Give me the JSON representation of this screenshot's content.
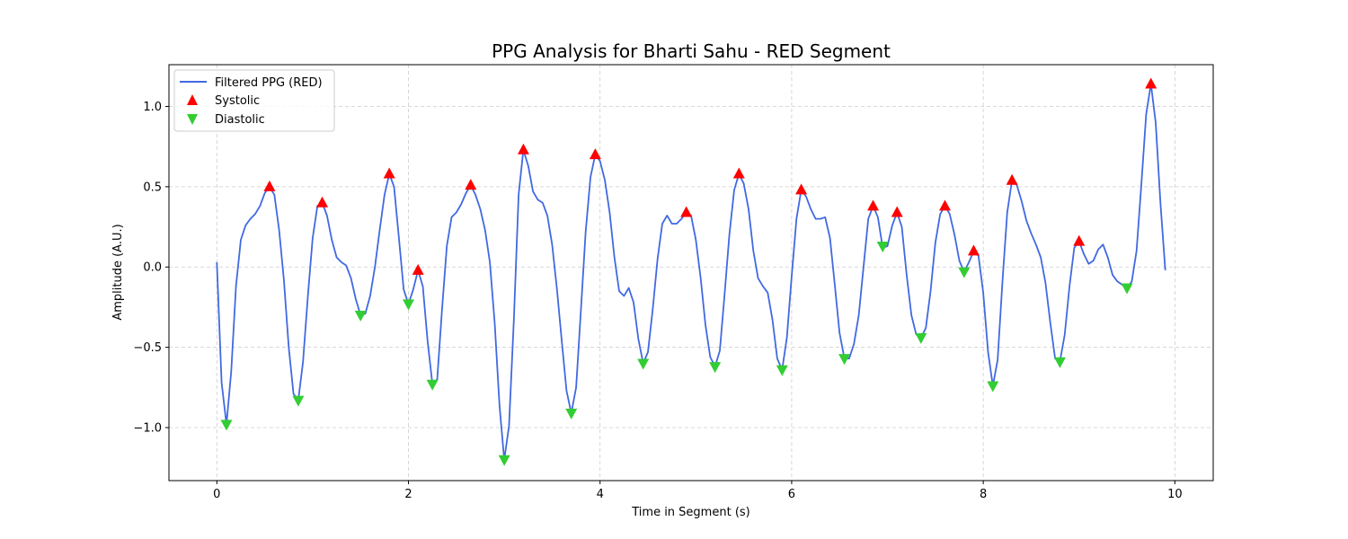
{
  "chart_data": {
    "type": "line",
    "title": "PPG Analysis for Bharti Sahu - RED Segment",
    "xlabel": "Time in Segment (s)",
    "ylabel": "Amplitude (A.U.)",
    "xlim": [
      -0.5,
      10.4
    ],
    "ylim": [
      -1.33,
      1.26
    ],
    "xticks": [
      0,
      2,
      4,
      6,
      8,
      10
    ],
    "yticks": [
      -1.0,
      -0.5,
      0.0,
      0.5,
      1.0
    ],
    "xtick_labels": [
      "0",
      "2",
      "4",
      "6",
      "8",
      "10"
    ],
    "ytick_labels": [
      "−1.0",
      "−0.5",
      "0.0",
      "0.5",
      "1.0"
    ],
    "grid": true,
    "legend_position": "top-left",
    "colors": {
      "line": "#4169e1",
      "systolic": "#ff0000",
      "diastolic": "#32cd32",
      "grid": "#cccccc"
    },
    "series": [
      {
        "name": "Filtered PPG (RED)",
        "kind": "line",
        "x": [
          0.0,
          0.05,
          0.1,
          0.15,
          0.2,
          0.25,
          0.3,
          0.35,
          0.4,
          0.45,
          0.5,
          0.55,
          0.6,
          0.65,
          0.7,
          0.75,
          0.8,
          0.85,
          0.9,
          0.95,
          1.0,
          1.05,
          1.1,
          1.15,
          1.2,
          1.25,
          1.3,
          1.35,
          1.4,
          1.45,
          1.5,
          1.55,
          1.6,
          1.65,
          1.7,
          1.75,
          1.8,
          1.85,
          1.9,
          1.95,
          2.0,
          2.05,
          2.1,
          2.15,
          2.2,
          2.25,
          2.3,
          2.35,
          2.4,
          2.45,
          2.5,
          2.55,
          2.6,
          2.65,
          2.7,
          2.75,
          2.8,
          2.85,
          2.9,
          2.95,
          3.0,
          3.05,
          3.1,
          3.15,
          3.2,
          3.25,
          3.3,
          3.35,
          3.4,
          3.45,
          3.5,
          3.55,
          3.6,
          3.65,
          3.7,
          3.75,
          3.8,
          3.85,
          3.9,
          3.95,
          4.0,
          4.05,
          4.1,
          4.15,
          4.2,
          4.25,
          4.3,
          4.35,
          4.4,
          4.45,
          4.5,
          4.55,
          4.6,
          4.65,
          4.7,
          4.75,
          4.8,
          4.85,
          4.9,
          4.95,
          5.0,
          5.05,
          5.1,
          5.15,
          5.2,
          5.25,
          5.3,
          5.35,
          5.4,
          5.45,
          5.5,
          5.55,
          5.6,
          5.65,
          5.7,
          5.75,
          5.8,
          5.85,
          5.9,
          5.95,
          6.0,
          6.05,
          6.1,
          6.15,
          6.2,
          6.25,
          6.3,
          6.35,
          6.4,
          6.45,
          6.5,
          6.55,
          6.6,
          6.65,
          6.7,
          6.75,
          6.8,
          6.85,
          6.9,
          6.95,
          7.0,
          7.05,
          7.1,
          7.15,
          7.2,
          7.25,
          7.3,
          7.35,
          7.4,
          7.45,
          7.5,
          7.55,
          7.6,
          7.65,
          7.7,
          7.75,
          7.8,
          7.85,
          7.9,
          7.95,
          8.0,
          8.05,
          8.1,
          8.15,
          8.2,
          8.25,
          8.3,
          8.35,
          8.4,
          8.45,
          8.5,
          8.55,
          8.6,
          8.65,
          8.7,
          8.75,
          8.8,
          8.85,
          8.9,
          8.95,
          9.0,
          9.05,
          9.1,
          9.15,
          9.2,
          9.25,
          9.3,
          9.35,
          9.4,
          9.45,
          9.5,
          9.55,
          9.6,
          9.65,
          9.7,
          9.75,
          9.8,
          9.85,
          9.9
        ],
        "y": [
          0.03,
          -0.72,
          -0.98,
          -0.65,
          -0.12,
          0.17,
          0.26,
          0.3,
          0.33,
          0.38,
          0.46,
          0.5,
          0.45,
          0.23,
          -0.08,
          -0.5,
          -0.79,
          -0.83,
          -0.59,
          -0.18,
          0.18,
          0.38,
          0.4,
          0.32,
          0.17,
          0.06,
          0.03,
          0.01,
          -0.07,
          -0.2,
          -0.3,
          -0.29,
          -0.18,
          0.0,
          0.23,
          0.45,
          0.58,
          0.5,
          0.18,
          -0.14,
          -0.23,
          -0.14,
          -0.02,
          -0.12,
          -0.46,
          -0.73,
          -0.7,
          -0.27,
          0.13,
          0.31,
          0.34,
          0.39,
          0.46,
          0.51,
          0.45,
          0.36,
          0.23,
          0.03,
          -0.35,
          -0.86,
          -1.2,
          -0.99,
          -0.33,
          0.45,
          0.73,
          0.63,
          0.47,
          0.42,
          0.4,
          0.32,
          0.14,
          -0.14,
          -0.46,
          -0.77,
          -0.91,
          -0.75,
          -0.27,
          0.22,
          0.56,
          0.7,
          0.66,
          0.54,
          0.34,
          0.06,
          -0.15,
          -0.18,
          -0.13,
          -0.22,
          -0.45,
          -0.6,
          -0.53,
          -0.26,
          0.05,
          0.27,
          0.32,
          0.27,
          0.27,
          0.3,
          0.34,
          0.32,
          0.17,
          -0.07,
          -0.36,
          -0.56,
          -0.62,
          -0.52,
          -0.17,
          0.2,
          0.48,
          0.58,
          0.52,
          0.36,
          0.1,
          -0.07,
          -0.12,
          -0.16,
          -0.33,
          -0.57,
          -0.64,
          -0.44,
          -0.06,
          0.3,
          0.48,
          0.44,
          0.36,
          0.3,
          0.3,
          0.31,
          0.18,
          -0.11,
          -0.41,
          -0.57,
          -0.57,
          -0.48,
          -0.3,
          0.0,
          0.3,
          0.38,
          0.31,
          0.12,
          0.13,
          0.26,
          0.34,
          0.25,
          -0.05,
          -0.3,
          -0.42,
          -0.44,
          -0.38,
          -0.15,
          0.15,
          0.33,
          0.38,
          0.33,
          0.2,
          0.04,
          -0.03,
          0.03,
          0.1,
          0.07,
          -0.16,
          -0.53,
          -0.74,
          -0.58,
          -0.09,
          0.34,
          0.54,
          0.51,
          0.41,
          0.29,
          0.21,
          0.14,
          0.06,
          -0.1,
          -0.35,
          -0.57,
          -0.59,
          -0.42,
          -0.12,
          0.12,
          0.16,
          0.08,
          0.02,
          0.04,
          0.11,
          0.14,
          0.06,
          -0.05,
          -0.09,
          -0.11,
          -0.13,
          -0.09,
          0.1,
          0.51,
          0.95,
          1.14,
          0.9,
          0.39,
          -0.02
        ]
      },
      {
        "name": "Systolic",
        "kind": "marker",
        "marker": "triangle-up",
        "x": [
          0.55,
          1.1,
          1.8,
          2.1,
          2.65,
          3.2,
          3.95,
          4.9,
          5.45,
          6.1,
          6.85,
          7.1,
          7.6,
          7.9,
          8.3,
          9.0,
          9.75
        ],
        "y": [
          0.5,
          0.4,
          0.58,
          -0.02,
          0.51,
          0.73,
          0.7,
          0.34,
          0.58,
          0.48,
          0.38,
          0.34,
          0.38,
          0.1,
          0.54,
          0.16,
          1.14
        ]
      },
      {
        "name": "Diastolic",
        "kind": "marker",
        "marker": "triangle-down",
        "x": [
          0.1,
          0.85,
          1.5,
          2.0,
          2.25,
          3.0,
          3.7,
          4.45,
          5.2,
          5.9,
          6.55,
          6.95,
          7.35,
          7.8,
          8.1,
          8.8,
          9.5
        ],
        "y": [
          -0.98,
          -0.83,
          -0.3,
          -0.23,
          -0.73,
          -1.2,
          -0.91,
          -0.6,
          -0.62,
          -0.64,
          -0.57,
          0.13,
          -0.44,
          -0.03,
          -0.74,
          -0.59,
          -0.13
        ]
      }
    ]
  }
}
